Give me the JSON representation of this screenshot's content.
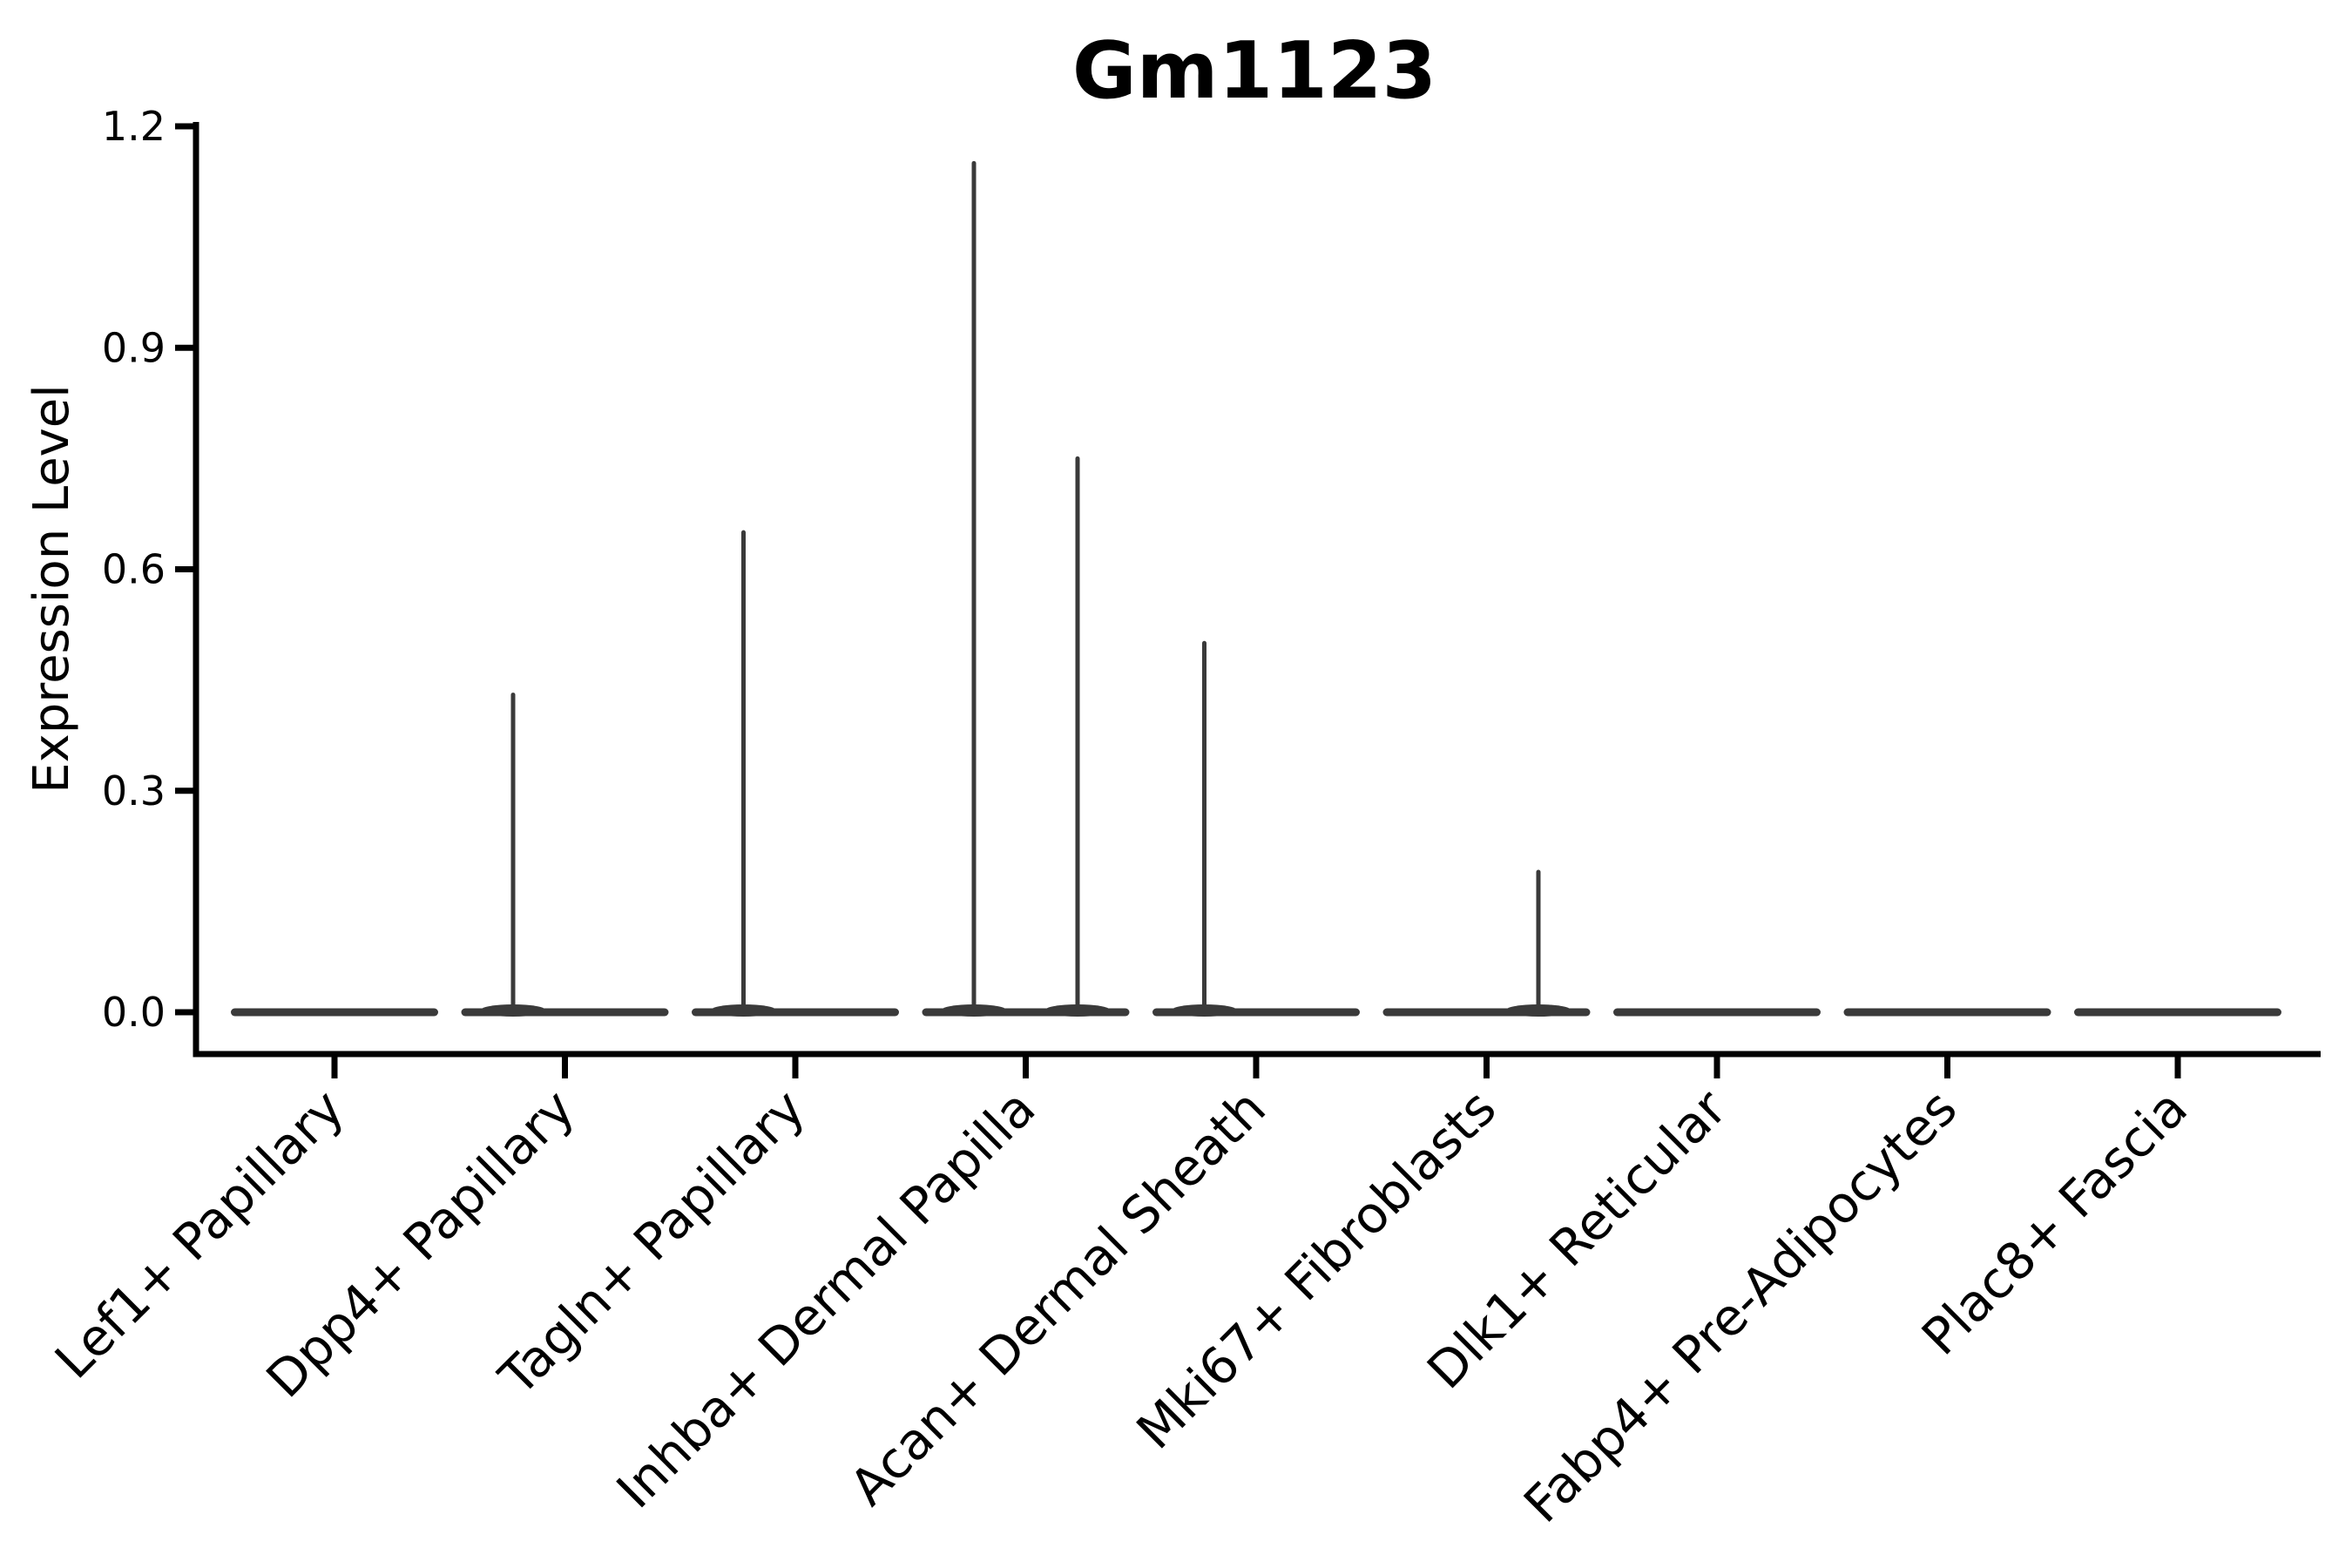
{
  "chart_data": {
    "type": "violin",
    "title": "Gm1123",
    "xlabel": "",
    "ylabel": "Expression Level",
    "ylim": [
      -0.06,
      1.21
    ],
    "yticks": [
      0.0,
      0.3,
      0.6,
      0.9,
      1.2
    ],
    "ytick_format": "0.0,0.3,0.6,0.9,1.2",
    "grid": false,
    "legend_position": "none",
    "colors": {
      "violin": "#3A3A3A",
      "axis": "#000000",
      "text": "#000000",
      "background": "#FFFFFF"
    },
    "categories": [
      "Lef1+ Papillary",
      "Dpp4+ Papillary",
      "Tagln+ Papillary",
      "Inhba+ Dermal Papilla",
      "Acan+ Dermal Sheath",
      "Mki67+ Fibroblasts",
      "Dlk1+ Reticular",
      "Fabp4+ Pre-Adipocytes",
      "Plac8+ Fascia"
    ],
    "violins": [
      {
        "category": "Lef1+ Papillary",
        "baseline_value": 0.0,
        "spikes": []
      },
      {
        "category": "Dpp4+ Papillary",
        "baseline_value": 0.0,
        "spikes": [
          {
            "position": "left",
            "max_value": 0.43
          }
        ]
      },
      {
        "category": "Tagln+ Papillary",
        "baseline_value": 0.0,
        "spikes": [
          {
            "position": "left",
            "max_value": 0.65
          }
        ]
      },
      {
        "category": "Inhba+ Dermal Papilla",
        "baseline_value": 0.0,
        "spikes": [
          {
            "position": "left",
            "max_value": 1.15
          },
          {
            "position": "right",
            "max_value": 0.75
          }
        ]
      },
      {
        "category": "Acan+ Dermal Sheath",
        "baseline_value": 0.0,
        "spikes": [
          {
            "position": "left",
            "max_value": 0.5
          }
        ]
      },
      {
        "category": "Mki67+ Fibroblasts",
        "baseline_value": 0.0,
        "spikes": [
          {
            "position": "right",
            "max_value": 0.19
          }
        ]
      },
      {
        "category": "Dlk1+ Reticular",
        "baseline_value": 0.0,
        "spikes": []
      },
      {
        "category": "Fabp4+ Pre-Adipocytes",
        "baseline_value": 0.0,
        "spikes": []
      },
      {
        "category": "Plac8+ Fascia",
        "baseline_value": 0.0,
        "spikes": []
      }
    ]
  }
}
